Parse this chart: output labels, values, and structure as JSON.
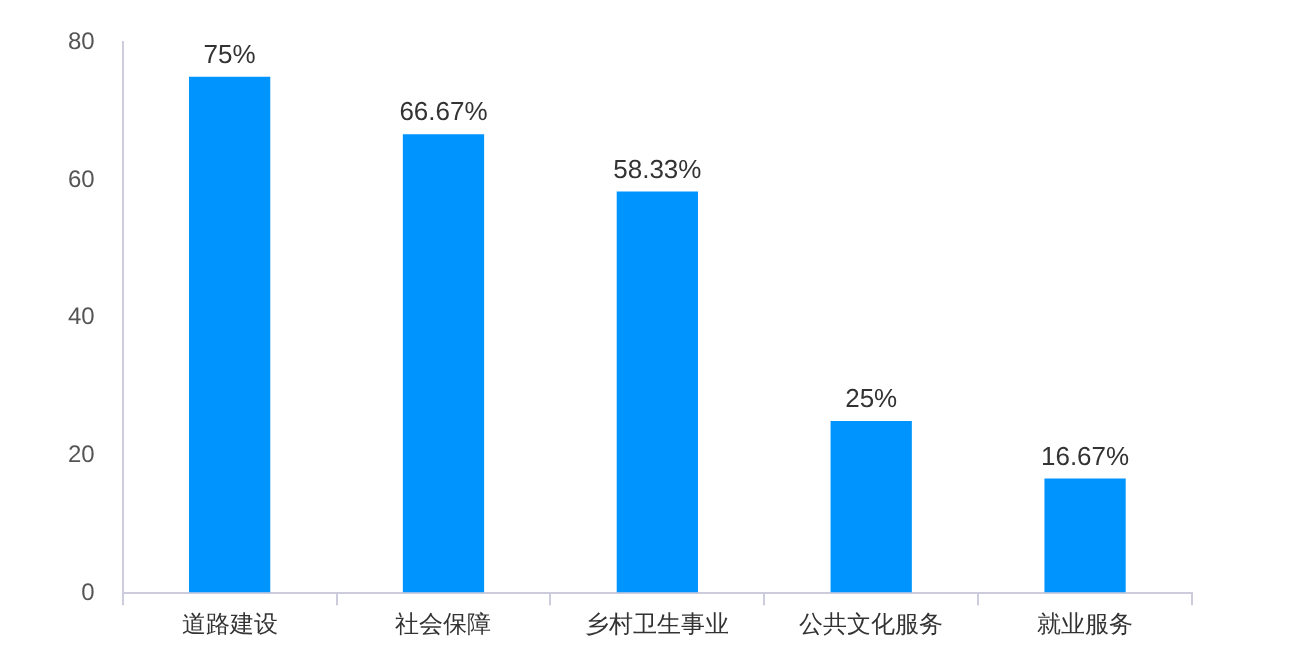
{
  "chart_data": {
    "type": "bar",
    "categories": [
      "道路建设",
      "社会保障",
      "乡村卫生事业",
      "公共文化服务",
      "就业服务"
    ],
    "values": [
      75,
      66.67,
      58.33,
      25,
      16.67
    ],
    "value_labels": [
      "75%",
      "66.67%",
      "58.33%",
      "25%",
      "16.67%"
    ],
    "color": "#0094ff",
    "ylim": [
      0,
      80
    ],
    "yticks": [
      0,
      20,
      40,
      60,
      80
    ],
    "grid": false,
    "legend": false
  }
}
